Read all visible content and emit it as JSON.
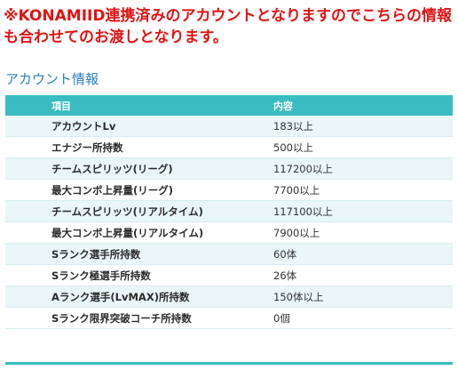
{
  "notice": "※KONAMIID連携済みのアカウントとなりますのでこちらの情報も合わせてのお渡しとなります。",
  "section_title": "アカウント情報",
  "table": {
    "headers": [
      "項目",
      "内容"
    ],
    "rows": [
      [
        "アカウントLv",
        "183以上"
      ],
      [
        "エナジー所持数",
        "500以上"
      ],
      [
        "チームスピリッツ(リーグ)",
        "117200以上"
      ],
      [
        "最大コンボ上昇量(リーグ)",
        "7700以上"
      ],
      [
        "チームスピリッツ(リアルタイム)",
        "117100以上"
      ],
      [
        "最大コンボ上昇量(リアルタイム)",
        "7900以上"
      ],
      [
        "Sランク選手所持数",
        "60体"
      ],
      [
        "Sランク極選手所持数",
        "26体"
      ],
      [
        "Aランク選手(LvMAX)所持数",
        "150体以上"
      ],
      [
        "Sランク限界突破コーチ所持数",
        "0個"
      ]
    ]
  },
  "colors": {
    "notice": "#e01414",
    "section_title": "#2a7fbf",
    "header_bg": "#3bbcc0",
    "row_alt_bg": "#eaf6f7"
  }
}
